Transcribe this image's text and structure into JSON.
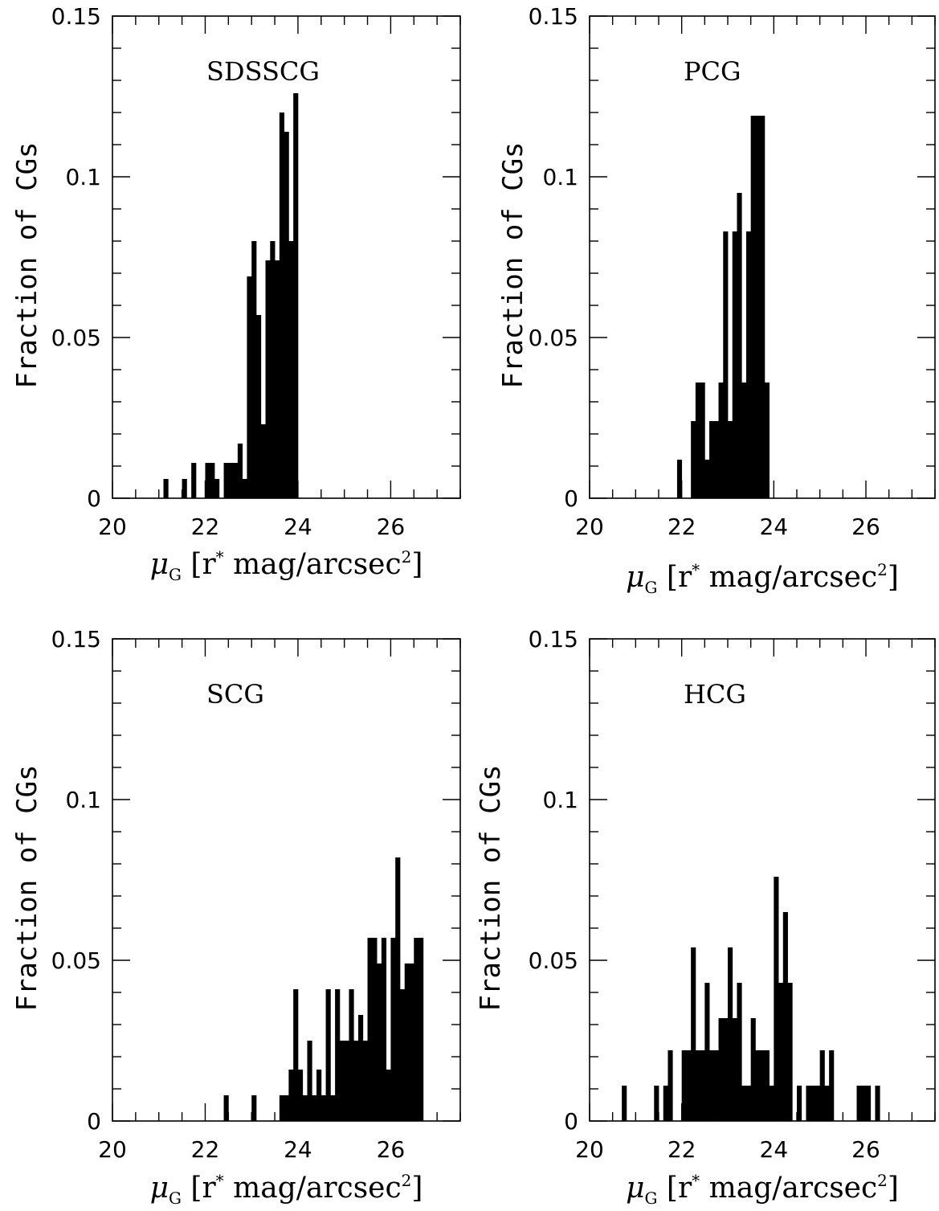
{
  "chart_data": [
    {
      "type": "bar",
      "panel_label": "SDSSCG",
      "xlabel_symbol": "μ",
      "xlabel_subscript": "G",
      "xlabel_rest": "[r",
      "xlabel_sup": "*",
      "xlabel_unit": "mag/arcsec",
      "xlabel_pow": "2",
      "xlabel_close": "]",
      "ylabel": "Fraction of CGs",
      "xlim": [
        20,
        27.5
      ],
      "ylim": [
        0,
        0.15
      ],
      "xticks": [
        "20",
        "22",
        "24",
        "26"
      ],
      "yticks": [
        "0",
        "0.05",
        "0.1",
        "0.15"
      ],
      "bin_width": 0.1,
      "x": [
        21.1,
        21.5,
        21.7,
        22.0,
        22.1,
        22.2,
        22.4,
        22.5,
        22.6,
        22.7,
        22.8,
        22.9,
        23.0,
        23.1,
        23.2,
        23.3,
        23.4,
        23.5,
        23.6,
        23.7,
        23.8,
        23.9
      ],
      "values": [
        0.006,
        0.006,
        0.011,
        0.011,
        0.011,
        0.006,
        0.011,
        0.011,
        0.011,
        0.017,
        0.006,
        0.069,
        0.08,
        0.057,
        0.023,
        0.074,
        0.08,
        0.074,
        0.12,
        0.114,
        0.08,
        0.126
      ]
    },
    {
      "type": "bar",
      "panel_label": "PCG",
      "xlabel_symbol": "μ",
      "xlabel_subscript": "G",
      "xlabel_rest": "[r",
      "xlabel_sup": "*",
      "xlabel_unit": "mag/arcsec",
      "xlabel_pow": "2",
      "xlabel_close": "]",
      "ylabel": "Fraction of CGs",
      "xlim": [
        20,
        27.5
      ],
      "ylim": [
        0,
        0.15
      ],
      "xticks": [
        "20",
        "22",
        "24",
        "26"
      ],
      "yticks": [
        "0",
        "0.05",
        "0.1",
        "0.15"
      ],
      "bin_width": 0.1,
      "x": [
        21.9,
        22.2,
        22.3,
        22.4,
        22.5,
        22.6,
        22.7,
        22.8,
        22.9,
        23.0,
        23.1,
        23.2,
        23.3,
        23.4,
        23.5,
        23.6,
        23.7,
        23.8
      ],
      "values": [
        0.012,
        0.024,
        0.036,
        0.036,
        0.012,
        0.024,
        0.024,
        0.036,
        0.083,
        0.024,
        0.083,
        0.095,
        0.036,
        0.083,
        0.119,
        0.119,
        0.119,
        0.036
      ]
    },
    {
      "type": "bar",
      "panel_label": "SCG",
      "xlabel_symbol": "μ",
      "xlabel_subscript": "G",
      "xlabel_rest": "[r",
      "xlabel_sup": "*",
      "xlabel_unit": "mag/arcsec",
      "xlabel_pow": "2",
      "xlabel_close": "]",
      "ylabel": "Fraction of CGs",
      "xlim": [
        20,
        27.5
      ],
      "ylim": [
        0,
        0.15
      ],
      "xticks": [
        "20",
        "22",
        "24",
        "26"
      ],
      "yticks": [
        "0",
        "0.05",
        "0.1",
        "0.15"
      ],
      "bin_width": 0.1,
      "x": [
        22.4,
        23.0,
        23.6,
        23.7,
        23.8,
        23.9,
        24.0,
        24.1,
        24.2,
        24.3,
        24.4,
        24.5,
        24.6,
        24.7,
        24.8,
        24.9,
        25.0,
        25.1,
        25.2,
        25.3,
        25.4,
        25.5,
        25.6,
        25.7,
        25.8,
        25.9,
        26.0,
        26.1,
        26.2,
        26.3,
        26.4,
        26.5,
        26.6
      ],
      "values": [
        0.008,
        0.008,
        0.008,
        0.008,
        0.016,
        0.041,
        0.016,
        0.008,
        0.025,
        0.008,
        0.016,
        0.008,
        0.041,
        0.008,
        0.041,
        0.025,
        0.025,
        0.041,
        0.025,
        0.033,
        0.025,
        0.057,
        0.057,
        0.049,
        0.057,
        0.016,
        0.057,
        0.082,
        0.041,
        0.049,
        0.049,
        0.057,
        0.057
      ]
    },
    {
      "type": "bar",
      "panel_label": "HCG",
      "xlabel_symbol": "μ",
      "xlabel_subscript": "G",
      "xlabel_rest": "[r",
      "xlabel_sup": "*",
      "xlabel_unit": "mag/arcsec",
      "xlabel_pow": "2",
      "xlabel_close": "]",
      "ylabel": "Fraction of CGs",
      "xlim": [
        20,
        27.5
      ],
      "ylim": [
        0,
        0.15
      ],
      "xticks": [
        "20",
        "22",
        "24",
        "26"
      ],
      "yticks": [
        "0",
        "0.05",
        "0.1",
        "0.15"
      ],
      "bin_width": 0.1,
      "x": [
        20.7,
        21.4,
        21.6,
        21.7,
        22.0,
        22.1,
        22.2,
        22.3,
        22.4,
        22.5,
        22.6,
        22.7,
        22.8,
        22.9,
        23.0,
        23.1,
        23.2,
        23.3,
        23.4,
        23.5,
        23.6,
        23.7,
        23.8,
        23.9,
        24.0,
        24.1,
        24.2,
        24.3,
        24.5,
        24.7,
        24.8,
        24.9,
        25.0,
        25.1,
        25.2,
        25.8,
        25.9,
        26.0,
        26.2
      ],
      "values": [
        0.011,
        0.011,
        0.011,
        0.022,
        0.022,
        0.022,
        0.054,
        0.022,
        0.022,
        0.043,
        0.022,
        0.022,
        0.032,
        0.032,
        0.054,
        0.032,
        0.043,
        0.011,
        0.011,
        0.032,
        0.022,
        0.022,
        0.022,
        0.011,
        0.076,
        0.043,
        0.065,
        0.043,
        0.011,
        0.011,
        0.011,
        0.011,
        0.022,
        0.011,
        0.022,
        0.011,
        0.011,
        0.011,
        0.011
      ]
    }
  ]
}
